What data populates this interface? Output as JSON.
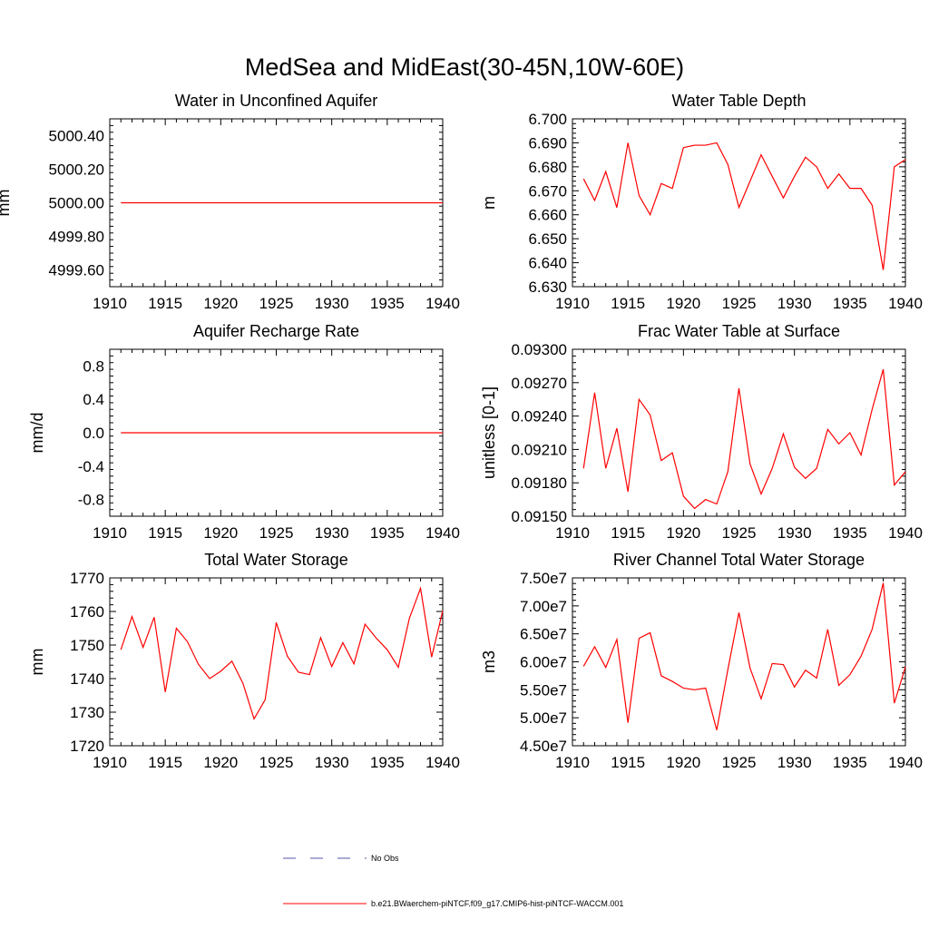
{
  "figure": {
    "title": "MedSea and MidEast(30-45N,10W-60E)",
    "series_color": "#ff0000",
    "obs_color": "#5555aa"
  },
  "legend": {
    "items": [
      {
        "label": "No Obs",
        "style": "dashed",
        "color": "#5555aa"
      },
      {
        "label": "b.e21.BWaerchem-piNTCF.f09_g17.CMIP6-hist-piNTCF-WACCM.001",
        "style": "solid",
        "color": "#ff0000"
      }
    ]
  },
  "chart_data": [
    {
      "type": "line",
      "title": "Water in Unconfined Aquifer",
      "ylabel": "mm",
      "xlabel": "",
      "xlim": [
        1910,
        1940
      ],
      "ylim": [
        4999.5,
        5000.5
      ],
      "xticks": [
        1910,
        1915,
        1920,
        1925,
        1930,
        1935,
        1940
      ],
      "yticks": [
        4999.6,
        4999.8,
        5000.0,
        5000.2,
        5000.4
      ],
      "ytick_labels": [
        "4999.60",
        "4999.80",
        "5000.00",
        "5000.20",
        "5000.40"
      ],
      "series": [
        {
          "name": "b.e21.BWaerchem-piNTCF.f09_g17.CMIP6-hist-piNTCF-WACCM.001",
          "x": [
            1911,
            1912,
            1913,
            1914,
            1915,
            1916,
            1917,
            1918,
            1919,
            1920,
            1921,
            1922,
            1923,
            1924,
            1925,
            1926,
            1927,
            1928,
            1929,
            1930,
            1931,
            1932,
            1933,
            1934,
            1935,
            1936,
            1937,
            1938,
            1939,
            1940
          ],
          "values": [
            5000,
            5000,
            5000,
            5000,
            5000,
            5000,
            5000,
            5000,
            5000,
            5000,
            5000,
            5000,
            5000,
            5000,
            5000,
            5000,
            5000,
            5000,
            5000,
            5000,
            5000,
            5000,
            5000,
            5000,
            5000,
            5000,
            5000,
            5000,
            5000,
            5000
          ]
        }
      ]
    },
    {
      "type": "line",
      "title": "Water Table Depth",
      "ylabel": "m",
      "xlabel": "",
      "xlim": [
        1910,
        1940
      ],
      "ylim": [
        6.63,
        6.7
      ],
      "xticks": [
        1910,
        1915,
        1920,
        1925,
        1930,
        1935,
        1940
      ],
      "yticks": [
        6.63,
        6.64,
        6.65,
        6.66,
        6.67,
        6.68,
        6.69,
        6.7
      ],
      "ytick_labels": [
        "6.630",
        "6.640",
        "6.650",
        "6.660",
        "6.670",
        "6.680",
        "6.690",
        "6.700"
      ],
      "series": [
        {
          "name": "b.e21.BWaerchem-piNTCF.f09_g17.CMIP6-hist-piNTCF-WACCM.001",
          "x": [
            1911,
            1912,
            1913,
            1914,
            1915,
            1916,
            1917,
            1918,
            1919,
            1920,
            1921,
            1922,
            1923,
            1924,
            1925,
            1926,
            1927,
            1928,
            1929,
            1930,
            1931,
            1932,
            1933,
            1934,
            1935,
            1936,
            1937,
            1938,
            1939,
            1940
          ],
          "values": [
            6.675,
            6.666,
            6.678,
            6.663,
            6.69,
            6.668,
            6.66,
            6.673,
            6.671,
            6.688,
            6.689,
            6.689,
            6.69,
            6.681,
            6.663,
            6.674,
            6.685,
            6.676,
            6.667,
            6.676,
            6.684,
            6.68,
            6.671,
            6.677,
            6.671,
            6.671,
            6.664,
            6.637,
            6.68,
            6.683
          ]
        }
      ]
    },
    {
      "type": "line",
      "title": "Aquifer Recharge Rate",
      "ylabel": "mm/d",
      "xlabel": "",
      "xlim": [
        1910,
        1940
      ],
      "ylim": [
        -1.0,
        1.0
      ],
      "xticks": [
        1910,
        1915,
        1920,
        1925,
        1930,
        1935,
        1940
      ],
      "yticks": [
        -0.8,
        -0.4,
        0.0,
        0.4,
        0.8
      ],
      "ytick_labels": [
        "-0.8",
        "-0.4",
        "0.0",
        "0.4",
        "0.8"
      ],
      "series": [
        {
          "name": "b.e21.BWaerchem-piNTCF.f09_g17.CMIP6-hist-piNTCF-WACCM.001",
          "x": [
            1911,
            1912,
            1913,
            1914,
            1915,
            1916,
            1917,
            1918,
            1919,
            1920,
            1921,
            1922,
            1923,
            1924,
            1925,
            1926,
            1927,
            1928,
            1929,
            1930,
            1931,
            1932,
            1933,
            1934,
            1935,
            1936,
            1937,
            1938,
            1939,
            1940
          ],
          "values": [
            0,
            0,
            0,
            0,
            0,
            0,
            0,
            0,
            0,
            0,
            0,
            0,
            0,
            0,
            0,
            0,
            0,
            0,
            0,
            0,
            0,
            0,
            0,
            0,
            0,
            0,
            0,
            0,
            0,
            0
          ]
        }
      ]
    },
    {
      "type": "line",
      "title": "Frac Water Table at Surface",
      "ylabel": "unitless [0-1]",
      "xlabel": "",
      "xlim": [
        1910,
        1940
      ],
      "ylim": [
        0.0915,
        0.093
      ],
      "xticks": [
        1910,
        1915,
        1920,
        1925,
        1930,
        1935,
        1940
      ],
      "yticks": [
        0.0915,
        0.0918,
        0.0921,
        0.0924,
        0.0927,
        0.093
      ],
      "ytick_labels": [
        "0.09150",
        "0.09180",
        "0.09210",
        "0.09240",
        "0.09270",
        "0.09300"
      ],
      "series": [
        {
          "name": "b.e21.BWaerchem-piNTCF.f09_g17.CMIP6-hist-piNTCF-WACCM.001",
          "x": [
            1911,
            1912,
            1913,
            1914,
            1915,
            1916,
            1917,
            1918,
            1919,
            1920,
            1921,
            1922,
            1923,
            1924,
            1925,
            1926,
            1927,
            1928,
            1929,
            1930,
            1931,
            1932,
            1933,
            1934,
            1935,
            1936,
            1937,
            1938,
            1939,
            1940
          ],
          "values": [
            0.09193,
            0.09261,
            0.09193,
            0.09229,
            0.09172,
            0.09255,
            0.09241,
            0.092,
            0.09207,
            0.09168,
            0.09157,
            0.09165,
            0.09161,
            0.0919,
            0.09265,
            0.09197,
            0.0917,
            0.09193,
            0.09224,
            0.09194,
            0.09184,
            0.09193,
            0.09228,
            0.09215,
            0.09225,
            0.09205,
            0.09246,
            0.09282,
            0.09178,
            0.0919
          ]
        }
      ]
    },
    {
      "type": "line",
      "title": "Total Water Storage",
      "ylabel": "mm",
      "xlabel": "",
      "xlim": [
        1910,
        1940
      ],
      "ylim": [
        1720,
        1770
      ],
      "xticks": [
        1910,
        1915,
        1920,
        1925,
        1930,
        1935,
        1940
      ],
      "yticks": [
        1720,
        1730,
        1740,
        1750,
        1760,
        1770
      ],
      "ytick_labels": [
        "1720",
        "1730",
        "1740",
        "1750",
        "1760",
        "1770"
      ],
      "series": [
        {
          "name": "b.e21.BWaerchem-piNTCF.f09_g17.CMIP6-hist-piNTCF-WACCM.001",
          "x": [
            1911,
            1912,
            1913,
            1914,
            1915,
            1916,
            1917,
            1918,
            1919,
            1920,
            1921,
            1922,
            1923,
            1924,
            1925,
            1926,
            1927,
            1928,
            1929,
            1930,
            1931,
            1932,
            1933,
            1934,
            1935,
            1936,
            1937,
            1938,
            1939,
            1940
          ],
          "values": [
            1748.6,
            1758.5,
            1749.3,
            1758.3,
            1736.0,
            1755.0,
            1751.0,
            1744.2,
            1740.0,
            1742.2,
            1745.2,
            1738.6,
            1728.0,
            1733.7,
            1756.7,
            1746.7,
            1741.9,
            1741.2,
            1752.2,
            1743.6,
            1750.7,
            1744.4,
            1756.2,
            1752.1,
            1748.6,
            1743.4,
            1758.0,
            1766.9,
            1746.4,
            1760.2
          ]
        }
      ]
    },
    {
      "type": "line",
      "title": "River Channel Total Water Storage",
      "ylabel": "m3",
      "xlabel": "",
      "xlim": [
        1910,
        1940
      ],
      "ylim": [
        45000000,
        75000000
      ],
      "xticks": [
        1910,
        1915,
        1920,
        1925,
        1930,
        1935,
        1940
      ],
      "yticks": [
        45000000,
        50000000,
        55000000,
        60000000,
        65000000,
        70000000,
        75000000
      ],
      "ytick_labels": [
        "4.50e7",
        "5.00e7",
        "5.50e7",
        "6.00e7",
        "6.50e7",
        "7.00e7",
        "7.50e7"
      ],
      "series": [
        {
          "name": "b.e21.BWaerchem-piNTCF.f09_g17.CMIP6-hist-piNTCF-WACCM.001",
          "x": [
            1911,
            1912,
            1913,
            1914,
            1915,
            1916,
            1917,
            1918,
            1919,
            1920,
            1921,
            1922,
            1923,
            1924,
            1925,
            1926,
            1927,
            1928,
            1929,
            1930,
            1931,
            1932,
            1933,
            1934,
            1935,
            1936,
            1937,
            1938,
            1939,
            1940
          ],
          "values": [
            59200000,
            62700000,
            59000000,
            64000000,
            49100000,
            64200000,
            65200000,
            57500000,
            56500000,
            55300000,
            55000000,
            55300000,
            47800000,
            58600000,
            68800000,
            58900000,
            53400000,
            59700000,
            59500000,
            55500000,
            58500000,
            57100000,
            65800000,
            55800000,
            57700000,
            61000000,
            65800000,
            74100000,
            52600000,
            59100000
          ]
        }
      ]
    }
  ]
}
